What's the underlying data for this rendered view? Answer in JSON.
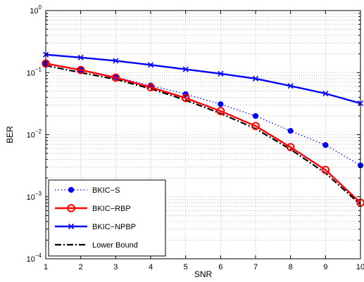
{
  "chart_data": {
    "type": "line",
    "xlabel": "SNR",
    "ylabel": "BER",
    "y_scale": "log",
    "xlim": [
      1,
      10
    ],
    "ylim": [
      0.0001,
      1
    ],
    "grid": true,
    "legend_position": "bottom-left",
    "x_tick_labels": [
      "1",
      "2",
      "3",
      "4",
      "5",
      "6",
      "7",
      "8",
      "9",
      "10"
    ],
    "y_tick_labels": [
      {
        "value": 0.0001,
        "base": "10",
        "exp": "−4"
      },
      {
        "value": 0.001,
        "base": "10",
        "exp": "−3"
      },
      {
        "value": 0.01,
        "base": "10",
        "exp": "−2"
      },
      {
        "value": 0.1,
        "base": "10",
        "exp": "−1"
      },
      {
        "value": 1,
        "base": "10",
        "exp": "0"
      }
    ],
    "series": [
      {
        "name": "BKIC−S",
        "color": "#0000ff",
        "line_style": "dotted",
        "marker": "dot",
        "x": [
          1,
          2,
          3,
          4,
          5,
          6,
          7,
          8,
          9,
          10
        ],
        "y": [
          0.14,
          0.11,
          0.085,
          0.062,
          0.045,
          0.031,
          0.02,
          0.0115,
          0.0068,
          0.0032
        ]
      },
      {
        "name": "BKIC−RBP",
        "color": "#ff0000",
        "line_style": "solid",
        "marker": "circle",
        "x": [
          1,
          2,
          3,
          4,
          5,
          6,
          7,
          8,
          9,
          10
        ],
        "y": [
          0.14,
          0.11,
          0.083,
          0.058,
          0.039,
          0.024,
          0.0138,
          0.0063,
          0.0027,
          0.0008
        ]
      },
      {
        "name": "BKIC−NPBP",
        "color": "#0000ff",
        "line_style": "solid",
        "marker": "x",
        "x": [
          1,
          2,
          3,
          4,
          5,
          6,
          7,
          8,
          9,
          10
        ],
        "y": [
          0.195,
          0.175,
          0.155,
          0.133,
          0.113,
          0.096,
          0.08,
          0.061,
          0.046,
          0.032
        ]
      },
      {
        "name": "Lower Bound",
        "color": "#000000",
        "line_style": "dashdot",
        "marker": "none",
        "x": [
          1,
          2,
          3,
          4,
          5,
          6,
          7,
          8,
          9,
          10
        ],
        "y": [
          0.13,
          0.1,
          0.078,
          0.055,
          0.036,
          0.022,
          0.0125,
          0.0058,
          0.0024,
          0.00075
        ]
      }
    ]
  }
}
